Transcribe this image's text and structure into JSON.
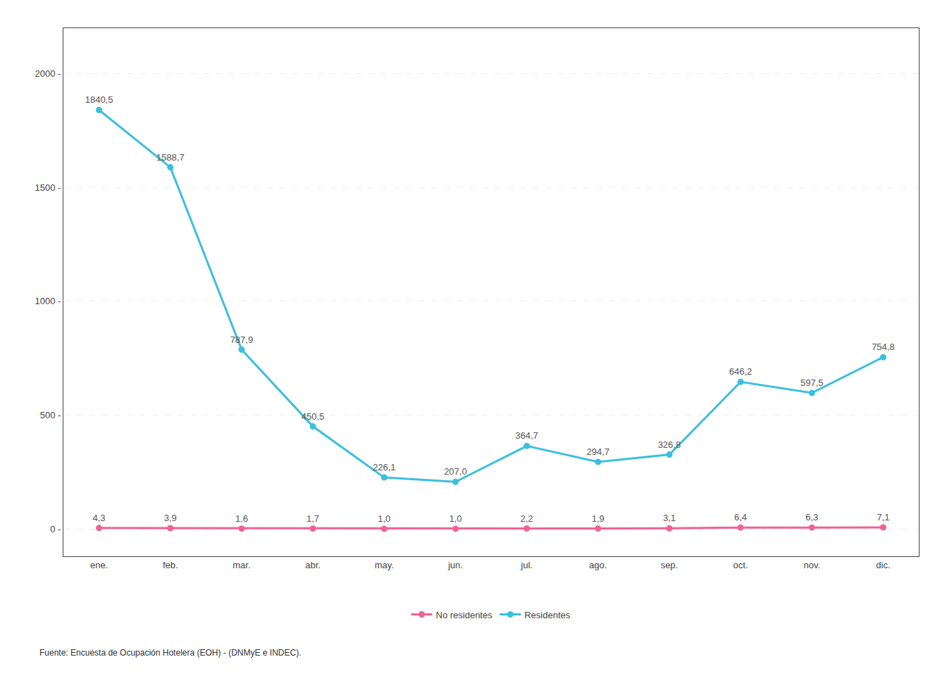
{
  "chart_data": {
    "type": "line",
    "categories": [
      "ene.",
      "feb.",
      "mar.",
      "abr.",
      "may.",
      "jun.",
      "jul.",
      "ago.",
      "sep.",
      "oct.",
      "nov.",
      "dic."
    ],
    "series": [
      {
        "name": "Residentes",
        "color": "#3bbfde",
        "marker": "circle",
        "values": [
          1840.5,
          1588.7,
          787.9,
          450.5,
          226.1,
          207.0,
          364.7,
          294.7,
          326.8,
          646.2,
          597.5,
          754.8
        ],
        "value_labels": [
          "1840,5",
          "1588,7",
          "787,9",
          "450,5",
          "226,1",
          "207,0",
          "364,7",
          "294,7",
          "326,8",
          "646,2",
          "597,5",
          "754,8"
        ]
      },
      {
        "name": "No residentes",
        "color": "#f06292",
        "marker": "circle",
        "values": [
          4.3,
          3.9,
          1.6,
          1.7,
          1.0,
          1.0,
          2.2,
          1.9,
          3.1,
          6.4,
          6.3,
          7.1
        ],
        "value_labels": [
          "4,3",
          "3,9",
          "1,6",
          "1,7",
          "1,0",
          "1,0",
          "2,2",
          "1,9",
          "3,1",
          "6,4",
          "6,3",
          "7,1"
        ]
      }
    ],
    "ylim": [
      -120,
      2200
    ],
    "yticks": [
      {
        "value": 0,
        "label": "0 -"
      },
      {
        "value": 500,
        "label": "500 -"
      },
      {
        "value": 1000,
        "label": "1000 -"
      },
      {
        "value": 1500,
        "label": "1500 -"
      },
      {
        "value": 2000,
        "label": "2000 -"
      }
    ],
    "grid": true,
    "data_labels": true,
    "legend": "bottom",
    "annotations": [
      "Fuente: Encuesta de Ocupación Hotelera (EOH) - (DNMyE e INDEC)."
    ]
  }
}
